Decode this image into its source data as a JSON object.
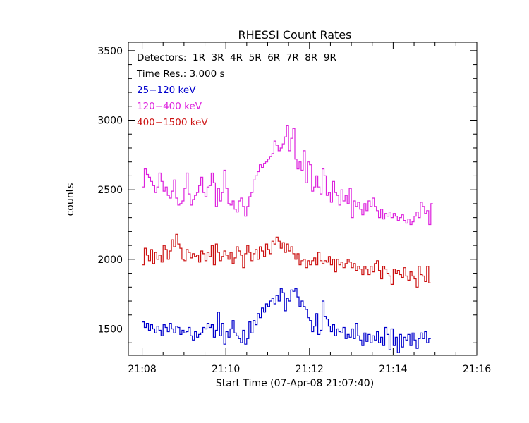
{
  "chart_data": {
    "type": "line",
    "title": "RHESSI Count Rates",
    "xlabel": "Start Time (07-Apr-08 21:07:40)",
    "ylabel": "counts",
    "x_ticks": [
      "21:08",
      "21:10",
      "21:12",
      "21:14",
      "21:16"
    ],
    "x_tick_minutes": [
      0,
      2,
      4,
      6,
      8
    ],
    "x_range_minutes_after_21_08": [
      -0.33,
      8.0
    ],
    "y_ticks": [
      1500,
      2000,
      2500,
      3000,
      3500
    ],
    "ylim": [
      1310,
      3560
    ],
    "legend_lines": [
      {
        "text": "Detectors:  1R  3R  4R  5R  6R  7R  8R  9R",
        "color": "#000000"
      },
      {
        "text": "Time Res.: 3.000 s",
        "color": "#000000"
      },
      {
        "text": "25−120 keV",
        "color": "#0000cc"
      },
      {
        "text": "120−400 keV",
        "color": "#dd22dd"
      },
      {
        "text": "400−1500 keV",
        "color": "#cc1111"
      }
    ],
    "series": [
      {
        "name": "25−120 keV",
        "color": "#0000cc",
        "t_start_minutes": 0.0,
        "dt_minutes": 0.05,
        "values": [
          1550,
          1510,
          1540,
          1490,
          1530,
          1500,
          1470,
          1520,
          1490,
          1450,
          1530,
          1510,
          1480,
          1540,
          1500,
          1470,
          1520,
          1510,
          1460,
          1490,
          1470,
          1480,
          1510,
          1450,
          1420,
          1480,
          1440,
          1460,
          1470,
          1510,
          1500,
          1540,
          1510,
          1530,
          1440,
          1490,
          1620,
          1450,
          1540,
          1390,
          1480,
          1440,
          1500,
          1560,
          1470,
          1450,
          1430,
          1400,
          1490,
          1390,
          1430,
          1550,
          1470,
          1560,
          1530,
          1610,
          1580,
          1650,
          1620,
          1680,
          1660,
          1700,
          1720,
          1680,
          1740,
          1700,
          1790,
          1760,
          1630,
          1720,
          1700,
          1780,
          1770,
          1790,
          1730,
          1660,
          1700,
          1660,
          1640,
          1580,
          1560,
          1480,
          1520,
          1610,
          1460,
          1490,
          1700,
          1590,
          1570,
          1520,
          1480,
          1530,
          1450,
          1500,
          1480,
          1470,
          1510,
          1430,
          1460,
          1440,
          1500,
          1430,
          1540,
          1450,
          1420,
          1380,
          1470,
          1410,
          1460,
          1400,
          1450,
          1420,
          1480,
          1400,
          1440,
          1380,
          1510,
          1460,
          1350,
          1500,
          1380,
          1440,
          1330,
          1460,
          1370,
          1440,
          1420,
          1460,
          1380,
          1470,
          1420,
          1360,
          1430,
          1470,
          1430,
          1480,
          1400,
          1430
        ]
      },
      {
        "name": "120−400 keV",
        "color": "#dd22dd",
        "t_start_minutes": 0.0,
        "dt_minutes": 0.05,
        "values": [
          2520,
          2650,
          2610,
          2590,
          2560,
          2530,
          2480,
          2520,
          2620,
          2560,
          2490,
          2520,
          2460,
          2440,
          2490,
          2570,
          2440,
          2390,
          2400,
          2420,
          2510,
          2620,
          2470,
          2390,
          2430,
          2460,
          2480,
          2530,
          2590,
          2480,
          2450,
          2520,
          2530,
          2620,
          2550,
          2380,
          2510,
          2420,
          2480,
          2640,
          2510,
          2400,
          2390,
          2420,
          2360,
          2340,
          2420,
          2440,
          2380,
          2310,
          2380,
          2450,
          2480,
          2570,
          2600,
          2630,
          2680,
          2660,
          2690,
          2700,
          2720,
          2740,
          2760,
          2850,
          2820,
          2780,
          2800,
          2830,
          2880,
          2960,
          2780,
          2870,
          2940,
          2720,
          2650,
          2700,
          2640,
          2780,
          2550,
          2700,
          2680,
          2490,
          2520,
          2600,
          2520,
          2470,
          2650,
          2600,
          2460,
          2480,
          2410,
          2560,
          2480,
          2460,
          2390,
          2500,
          2420,
          2460,
          2400,
          2510,
          2300,
          2420,
          2380,
          2410,
          2360,
          2320,
          2400,
          2350,
          2420,
          2380,
          2440,
          2380,
          2350,
          2300,
          2360,
          2290,
          2330,
          2310,
          2340,
          2300,
          2330,
          2310,
          2280,
          2300,
          2320,
          2280,
          2260,
          2290,
          2250,
          2270,
          2310,
          2340,
          2300,
          2410,
          2380,
          2330,
          2350,
          2250,
          2400
        ]
      },
      {
        "name": "400−1500 keV",
        "color": "#cc1111",
        "t_start_minutes": 0.0,
        "dt_minutes": 0.05,
        "values": [
          1960,
          2080,
          2030,
          1990,
          2070,
          1970,
          2050,
          2000,
          2030,
          1980,
          2100,
          2070,
          2000,
          2060,
          2140,
          2090,
          2180,
          2110,
          2080,
          2000,
          1990,
          2070,
          2050,
          2010,
          2040,
          2020,
          2030,
          1980,
          2060,
          2040,
          1990,
          2050,
          2020,
          2100,
          1960,
          2110,
          2050,
          1990,
          2020,
          2060,
          2030,
          2000,
          2050,
          1970,
          2010,
          2090,
          2060,
          2030,
          1940,
          2040,
          2100,
          2050,
          1990,
          2040,
          2070,
          2000,
          2090,
          2060,
          2020,
          2110,
          2070,
          2040,
          2130,
          2110,
          2160,
          2130,
          2080,
          2120,
          2050,
          2110,
          2060,
          2090,
          2040,
          2000,
          2040,
          1960,
          1990,
          2000,
          1940,
          1990,
          1960,
          1990,
          2010,
          1960,
          2050,
          1990,
          1970,
          1990,
          1980,
          2020,
          1960,
          2000,
          1910,
          2000,
          1960,
          1980,
          1940,
          1970,
          2000,
          1980,
          1940,
          1970,
          1920,
          1950,
          1930,
          1890,
          1950,
          1930,
          1890,
          1950,
          1910,
          1970,
          1990,
          1920,
          1860,
          1950,
          1930,
          1900,
          1880,
          1820,
          1930,
          1900,
          1920,
          1890,
          1870,
          1940,
          1880,
          1850,
          1910,
          1880,
          1860,
          1800,
          1950,
          1890,
          1880,
          1840,
          1950,
          1830
        ]
      }
    ]
  }
}
